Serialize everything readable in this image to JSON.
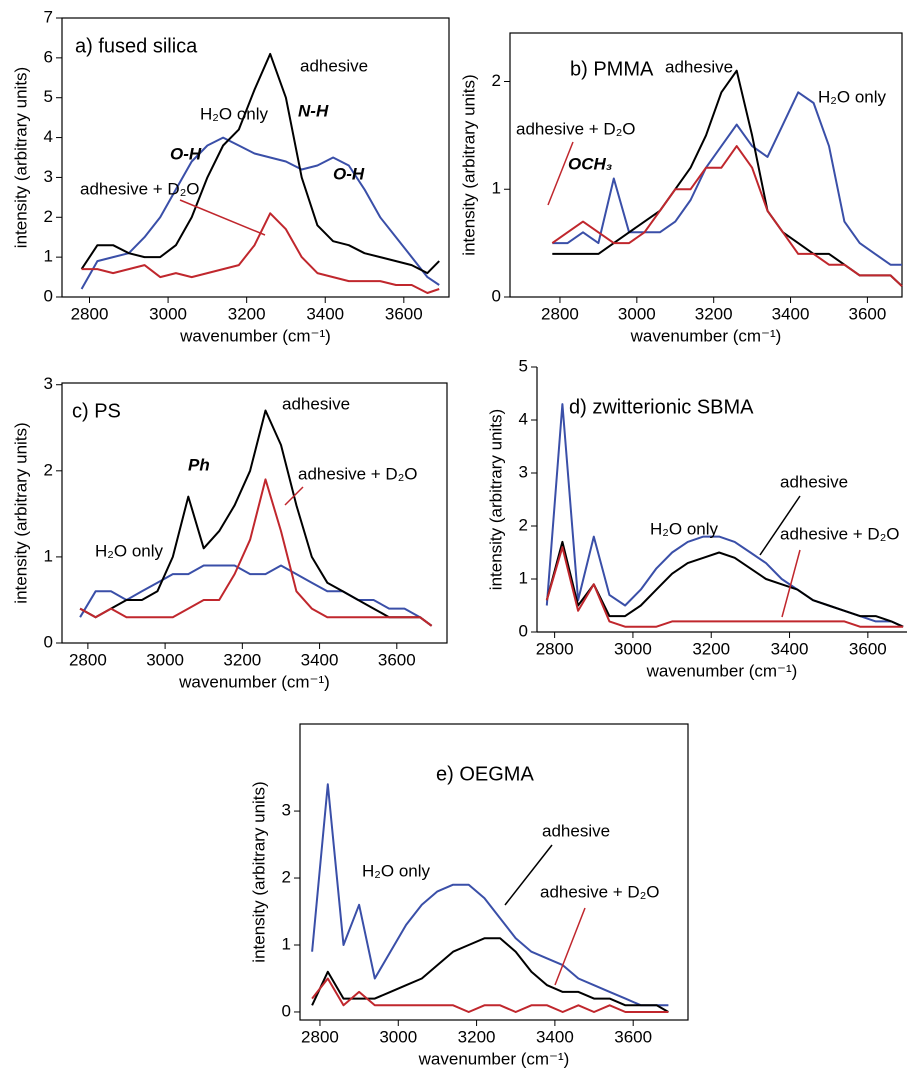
{
  "chart_data": [
    {
      "type": "line",
      "title": "a)  fused silica",
      "x_label": "wavenumber (cm⁻¹)",
      "y_label": "intensity (arbitrary units)",
      "x": [
        2780,
        2820,
        2860,
        2900,
        2940,
        2980,
        3020,
        3060,
        3100,
        3140,
        3180,
        3220,
        3260,
        3300,
        3340,
        3380,
        3420,
        3460,
        3500,
        3540,
        3580,
        3620,
        3660,
        3690
      ],
      "series": [
        {
          "name": "H₂O only",
          "color": "#3a4fa8",
          "values": [
            0.2,
            0.9,
            1.0,
            1.1,
            1.5,
            2.0,
            2.7,
            3.4,
            3.8,
            4.0,
            3.8,
            3.6,
            3.5,
            3.4,
            3.2,
            3.3,
            3.5,
            3.3,
            2.7,
            2.0,
            1.5,
            1.0,
            0.5,
            0.3
          ]
        },
        {
          "name": "adhesive",
          "color": "#000000",
          "values": [
            0.7,
            1.3,
            1.3,
            1.1,
            1.0,
            1.0,
            1.3,
            2.0,
            3.0,
            3.8,
            4.2,
            5.2,
            6.1,
            5.0,
            3.0,
            1.8,
            1.4,
            1.3,
            1.1,
            1.0,
            0.9,
            0.8,
            0.6,
            0.9
          ]
        },
        {
          "name": "adhesive + D₂O",
          "color": "#c0272d",
          "values": [
            0.7,
            0.7,
            0.6,
            0.7,
            0.8,
            0.5,
            0.6,
            0.5,
            0.6,
            0.7,
            0.8,
            1.3,
            2.1,
            1.7,
            1.0,
            0.6,
            0.5,
            0.4,
            0.4,
            0.4,
            0.3,
            0.3,
            0.1,
            0.2
          ]
        }
      ],
      "xlim": [
        2730,
        3715
      ],
      "ylim": [
        0,
        7
      ],
      "xticks": [
        2800,
        3000,
        3200,
        3400,
        3600
      ],
      "yticks": [
        0,
        1,
        2,
        3,
        4,
        5,
        6,
        7
      ],
      "frame": true,
      "annotations": [
        {
          "text": "N-H",
          "color": "#2e8b3a"
        },
        {
          "text": "O-H",
          "color": "#2e8b3a"
        },
        {
          "text": "O-H",
          "color": "#2e8b3a"
        }
      ]
    },
    {
      "type": "line",
      "title": "b)  PMMA",
      "x_label": "wavenumber (cm⁻¹)",
      "y_label": "intensity (arbitrary units)",
      "x": [
        2780,
        2820,
        2860,
        2900,
        2940,
        2980,
        3020,
        3060,
        3100,
        3140,
        3180,
        3220,
        3260,
        3300,
        3340,
        3380,
        3420,
        3460,
        3500,
        3540,
        3580,
        3620,
        3660,
        3690
      ],
      "series": [
        {
          "name": "H₂O only",
          "color": "#3a4fa8",
          "values": [
            0.5,
            0.5,
            0.6,
            0.5,
            1.1,
            0.6,
            0.6,
            0.6,
            0.7,
            0.9,
            1.2,
            1.4,
            1.6,
            1.4,
            1.3,
            1.6,
            1.9,
            1.8,
            1.4,
            0.7,
            0.5,
            0.4,
            0.3,
            0.3
          ]
        },
        {
          "name": "adhesive",
          "color": "#000000",
          "values": [
            0.4,
            0.4,
            0.4,
            0.4,
            0.5,
            0.6,
            0.7,
            0.8,
            1.0,
            1.2,
            1.5,
            1.9,
            2.1,
            1.5,
            0.8,
            0.6,
            0.5,
            0.4,
            0.4,
            0.3,
            0.2,
            0.2,
            0.2,
            0.1
          ]
        },
        {
          "name": "adhesive + D₂O",
          "color": "#c0272d",
          "values": [
            0.5,
            0.6,
            0.7,
            0.6,
            0.5,
            0.5,
            0.6,
            0.8,
            1.0,
            1.0,
            1.2,
            1.2,
            1.4,
            1.2,
            0.8,
            0.6,
            0.4,
            0.4,
            0.3,
            0.3,
            0.2,
            0.2,
            0.2,
            0.1
          ]
        }
      ],
      "xlim": [
        2670,
        3690
      ],
      "ylim": [
        0,
        2.45
      ],
      "xticks": [
        2800,
        3000,
        3200,
        3400,
        3600
      ],
      "yticks": [
        0,
        1,
        2
      ],
      "frame": true,
      "annotations": [
        {
          "text": "OCH₃",
          "color": "#2e8b3a"
        }
      ]
    },
    {
      "type": "line",
      "title": "c)  PS",
      "x_label": "wavenumber (cm⁻¹)",
      "y_label": "intensity (arbitrary units)",
      "x": [
        2780,
        2820,
        2860,
        2900,
        2940,
        2980,
        3020,
        3060,
        3100,
        3140,
        3180,
        3220,
        3260,
        3300,
        3340,
        3380,
        3420,
        3460,
        3500,
        3540,
        3580,
        3620,
        3660,
        3690
      ],
      "series": [
        {
          "name": "H₂O only",
          "color": "#3a4fa8",
          "values": [
            0.3,
            0.6,
            0.6,
            0.5,
            0.6,
            0.7,
            0.8,
            0.8,
            0.9,
            0.9,
            0.9,
            0.8,
            0.8,
            0.9,
            0.8,
            0.7,
            0.6,
            0.6,
            0.5,
            0.5,
            0.4,
            0.4,
            0.3,
            0.2
          ]
        },
        {
          "name": "adhesive",
          "color": "#000000",
          "values": [
            0.4,
            0.3,
            0.4,
            0.5,
            0.5,
            0.6,
            1.0,
            1.7,
            1.1,
            1.3,
            1.6,
            2.0,
            2.7,
            2.3,
            1.6,
            1.0,
            0.7,
            0.6,
            0.5,
            0.4,
            0.3,
            0.3,
            0.3,
            0.2
          ]
        },
        {
          "name": "adhesive + D₂O",
          "color": "#c0272d",
          "values": [
            0.4,
            0.3,
            0.4,
            0.3,
            0.3,
            0.3,
            0.3,
            0.4,
            0.5,
            0.5,
            0.8,
            1.2,
            1.9,
            1.3,
            0.6,
            0.4,
            0.3,
            0.3,
            0.3,
            0.3,
            0.3,
            0.3,
            0.3,
            0.2
          ]
        }
      ],
      "xlim": [
        2733,
        3730
      ],
      "ylim": [
        0,
        3.02
      ],
      "xticks": [
        2800,
        3000,
        3200,
        3400,
        3600
      ],
      "yticks": [
        0,
        1,
        2,
        3
      ],
      "frame": true,
      "annotations": [
        {
          "text": "Ph",
          "color": "#2e8b3a"
        }
      ]
    },
    {
      "type": "line",
      "title": "d)  zwitterionic SBMA",
      "x_label": "wavenumber (cm⁻¹)",
      "y_label": "intensity (arbitrary units)",
      "x": [
        2780,
        2820,
        2860,
        2900,
        2940,
        2980,
        3020,
        3060,
        3100,
        3140,
        3180,
        3220,
        3260,
        3300,
        3340,
        3380,
        3420,
        3460,
        3500,
        3540,
        3580,
        3620,
        3660,
        3690
      ],
      "series": [
        {
          "name": "H₂O only",
          "color": "#3a4fa8",
          "values": [
            0.5,
            4.3,
            0.6,
            1.8,
            0.7,
            0.5,
            0.8,
            1.2,
            1.5,
            1.7,
            1.8,
            1.8,
            1.7,
            1.5,
            1.3,
            1.0,
            0.8,
            0.6,
            0.5,
            0.4,
            0.3,
            0.2,
            0.2,
            0.1
          ]
        },
        {
          "name": "adhesive",
          "color": "#000000",
          "values": [
            0.6,
            1.7,
            0.5,
            0.9,
            0.3,
            0.3,
            0.5,
            0.8,
            1.1,
            1.3,
            1.4,
            1.5,
            1.4,
            1.2,
            1.0,
            0.9,
            0.8,
            0.6,
            0.5,
            0.4,
            0.3,
            0.3,
            0.2,
            0.1
          ]
        },
        {
          "name": "adhesive + D₂O",
          "color": "#c0272d",
          "values": [
            0.6,
            1.6,
            0.4,
            0.9,
            0.2,
            0.1,
            0.1,
            0.1,
            0.2,
            0.2,
            0.2,
            0.2,
            0.2,
            0.2,
            0.2,
            0.2,
            0.2,
            0.2,
            0.2,
            0.2,
            0.1,
            0.1,
            0.1,
            0.1
          ]
        }
      ],
      "xlim": [
        2755,
        3700
      ],
      "ylim": [
        0,
        5
      ],
      "xticks": [
        2800,
        3000,
        3200,
        3400,
        3600
      ],
      "yticks": [
        0,
        1,
        2,
        3,
        4,
        5
      ],
      "frame": false,
      "annotations": []
    },
    {
      "type": "line",
      "title": "e)  OEGMA",
      "x_label": "wavenumber (cm⁻¹)",
      "y_label": "intensity (arbitrary units)",
      "x": [
        2780,
        2820,
        2860,
        2900,
        2940,
        2980,
        3020,
        3060,
        3100,
        3140,
        3180,
        3220,
        3260,
        3300,
        3340,
        3380,
        3420,
        3460,
        3500,
        3540,
        3580,
        3620,
        3660,
        3690
      ],
      "series": [
        {
          "name": "H₂O only",
          "color": "#3a4fa8",
          "values": [
            0.9,
            3.4,
            1.0,
            1.6,
            0.5,
            0.9,
            1.3,
            1.6,
            1.8,
            1.9,
            1.9,
            1.7,
            1.4,
            1.1,
            0.9,
            0.8,
            0.7,
            0.5,
            0.4,
            0.3,
            0.2,
            0.1,
            0.1,
            0.1
          ]
        },
        {
          "name": "adhesive",
          "color": "#000000",
          "values": [
            0.1,
            0.6,
            0.2,
            0.2,
            0.2,
            0.3,
            0.4,
            0.5,
            0.7,
            0.9,
            1.0,
            1.1,
            1.1,
            0.9,
            0.6,
            0.4,
            0.3,
            0.3,
            0.2,
            0.2,
            0.1,
            0.1,
            0.1,
            0.0
          ]
        },
        {
          "name": "adhesive + D₂O",
          "color": "#c0272d",
          "values": [
            0.2,
            0.5,
            0.1,
            0.3,
            0.1,
            0.1,
            0.1,
            0.1,
            0.1,
            0.1,
            0.0,
            0.1,
            0.1,
            0.0,
            0.1,
            0.1,
            0.0,
            0.1,
            0.0,
            0.1,
            0.0,
            0.0,
            0.0,
            0.0
          ]
        }
      ],
      "xlim": [
        2749,
        3740
      ],
      "ylim": [
        -0.12,
        4.3
      ],
      "xticks": [
        2800,
        3000,
        3200,
        3400,
        3600
      ],
      "yticks": [
        0,
        1,
        2,
        3
      ],
      "frame": true,
      "annotations": []
    }
  ]
}
